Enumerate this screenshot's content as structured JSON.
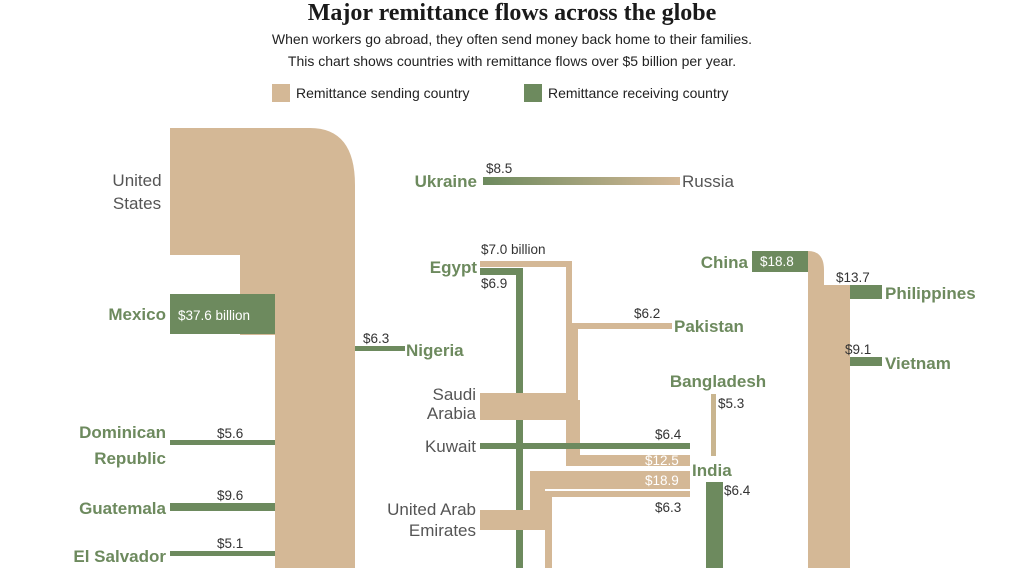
{
  "title": "Major remittance flows across the globe",
  "subtitle_line1": "When workers go abroad, they often send money back home to their families.",
  "subtitle_line2": "This chart shows countries with remittance flows over $5 billion per year.",
  "legend": {
    "sending": {
      "label": "Remittance sending country",
      "color": "#d4b896"
    },
    "receiving": {
      "label": "Remittance receiving country",
      "color": "#6d8a5e"
    }
  },
  "colors": {
    "sending": "#d4b896",
    "receiving": "#6d8a5e",
    "receiving_text": "#6d8a5e",
    "sending_text": "#555555"
  },
  "countries": {
    "united_states": {
      "line1": "United",
      "line2": "States"
    },
    "mexico": "Mexico",
    "nigeria": "Nigeria",
    "dominican_republic": {
      "line1": "Dominican",
      "line2": "Republic"
    },
    "guatemala": "Guatemala",
    "el_salvador": "El Salvador",
    "ukraine": "Ukraine",
    "russia": "Russia",
    "egypt": "Egypt",
    "pakistan": "Pakistan",
    "saudi_arabia": {
      "line1": "Saudi",
      "line2": "Arabia"
    },
    "kuwait": "Kuwait",
    "uae": {
      "line1": "United Arab",
      "line2": "Emirates"
    },
    "bangladesh": "Bangladesh",
    "india": "India",
    "china": "China",
    "philippines": "Philippines",
    "vietnam": "Vietnam"
  },
  "flows": [
    {
      "id": "us_mexico",
      "from": "United States",
      "to": "Mexico",
      "label": "$37.6 billion",
      "value": 37.6
    },
    {
      "id": "us_nigeria",
      "from": "United States",
      "to": "Nigeria",
      "label": "$6.3",
      "value": 6.3
    },
    {
      "id": "us_dominican",
      "from": "United States",
      "to": "Dominican Republic",
      "label": "$5.6",
      "value": 5.6
    },
    {
      "id": "us_guatemala",
      "from": "United States",
      "to": "Guatemala",
      "label": "$9.6",
      "value": 9.6
    },
    {
      "id": "us_elsalvador",
      "from": "United States",
      "to": "El Salvador",
      "label": "$5.1",
      "value": 5.1
    },
    {
      "id": "russia_ukraine",
      "from": "Russia",
      "to": "Ukraine",
      "label": "$8.5",
      "value": 8.5
    },
    {
      "id": "saudi_egypt",
      "from": "Saudi Arabia",
      "to": "Egypt",
      "label": "$7.0 billion",
      "value": 7.0
    },
    {
      "id": "kuwait_egypt",
      "from": "Kuwait",
      "to": "Egypt",
      "label": "$6.9",
      "value": 6.9
    },
    {
      "id": "saudi_pakistan",
      "from": "Saudi Arabia",
      "to": "Pakistan",
      "label": "$6.2",
      "value": 6.2
    },
    {
      "id": "kuwait_india",
      "from": "Kuwait",
      "to": "India",
      "label": "$6.4",
      "value": 6.4
    },
    {
      "id": "saudi_india",
      "from": "Saudi Arabia",
      "to": "India",
      "label": "$12.5",
      "value": 12.5
    },
    {
      "id": "uae_india",
      "from": "United Arab Emirates",
      "to": "India",
      "label": "$18.9",
      "value": 18.9
    },
    {
      "id": "uae_pakistan",
      "from": "United Arab Emirates",
      "to": "Pakistan",
      "label": "$6.3",
      "value": 6.3
    },
    {
      "id": "india_bangladesh",
      "from": "India",
      "to": "Bangladesh",
      "label": "$5.3",
      "value": 5.3
    },
    {
      "id": "us_india",
      "from": "United States",
      "to": "India",
      "label": "$6.4",
      "value": 6.4
    },
    {
      "id": "us_china",
      "from": "United States",
      "to": "China",
      "label": "$18.8",
      "value": 18.8
    },
    {
      "id": "us_philippines",
      "from": "United States",
      "to": "Philippines",
      "label": "$13.7",
      "value": 13.7
    },
    {
      "id": "us_vietnam",
      "from": "United States",
      "to": "Vietnam",
      "label": "$9.1",
      "value": 9.1
    }
  ]
}
